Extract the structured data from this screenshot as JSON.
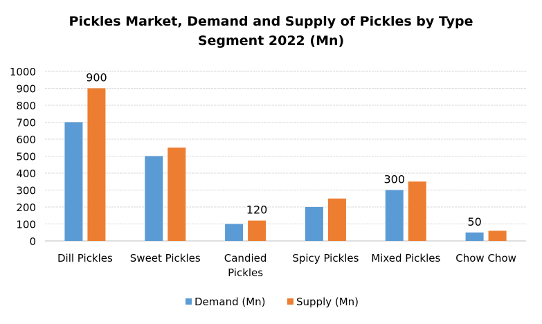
{
  "chart_data": {
    "type": "bar",
    "title_line1": "Pickles Market, Demand and Supply of Pickles by Type",
    "title_line2": "Segment 2022 (Mn)",
    "categories": [
      "Dill Pickles",
      "Sweet Pickles",
      "Candied Pickles",
      "Spicy Pickles",
      "Mixed Pickles",
      "Chow Chow"
    ],
    "series": [
      {
        "name": "Demand (Mn)",
        "color": "#5B9BD5",
        "values": [
          700,
          500,
          100,
          200,
          300,
          50
        ]
      },
      {
        "name": "Supply (Mn)",
        "color": "#ED7D31",
        "values": [
          900,
          550,
          120,
          250,
          350,
          60
        ]
      }
    ],
    "data_labels": [
      {
        "series": 1,
        "category": 0,
        "text": "900"
      },
      {
        "series": 1,
        "category": 2,
        "text": "120"
      },
      {
        "series": 0,
        "category": 4,
        "text": "300"
      },
      {
        "series": 0,
        "category": 5,
        "text": "50"
      }
    ],
    "yticks": [
      "0",
      "100",
      "200",
      "300",
      "400",
      "500",
      "600",
      "700",
      "800",
      "900",
      "1000"
    ],
    "ylim": [
      0,
      1000
    ],
    "grid": true,
    "legend": "bottom"
  }
}
